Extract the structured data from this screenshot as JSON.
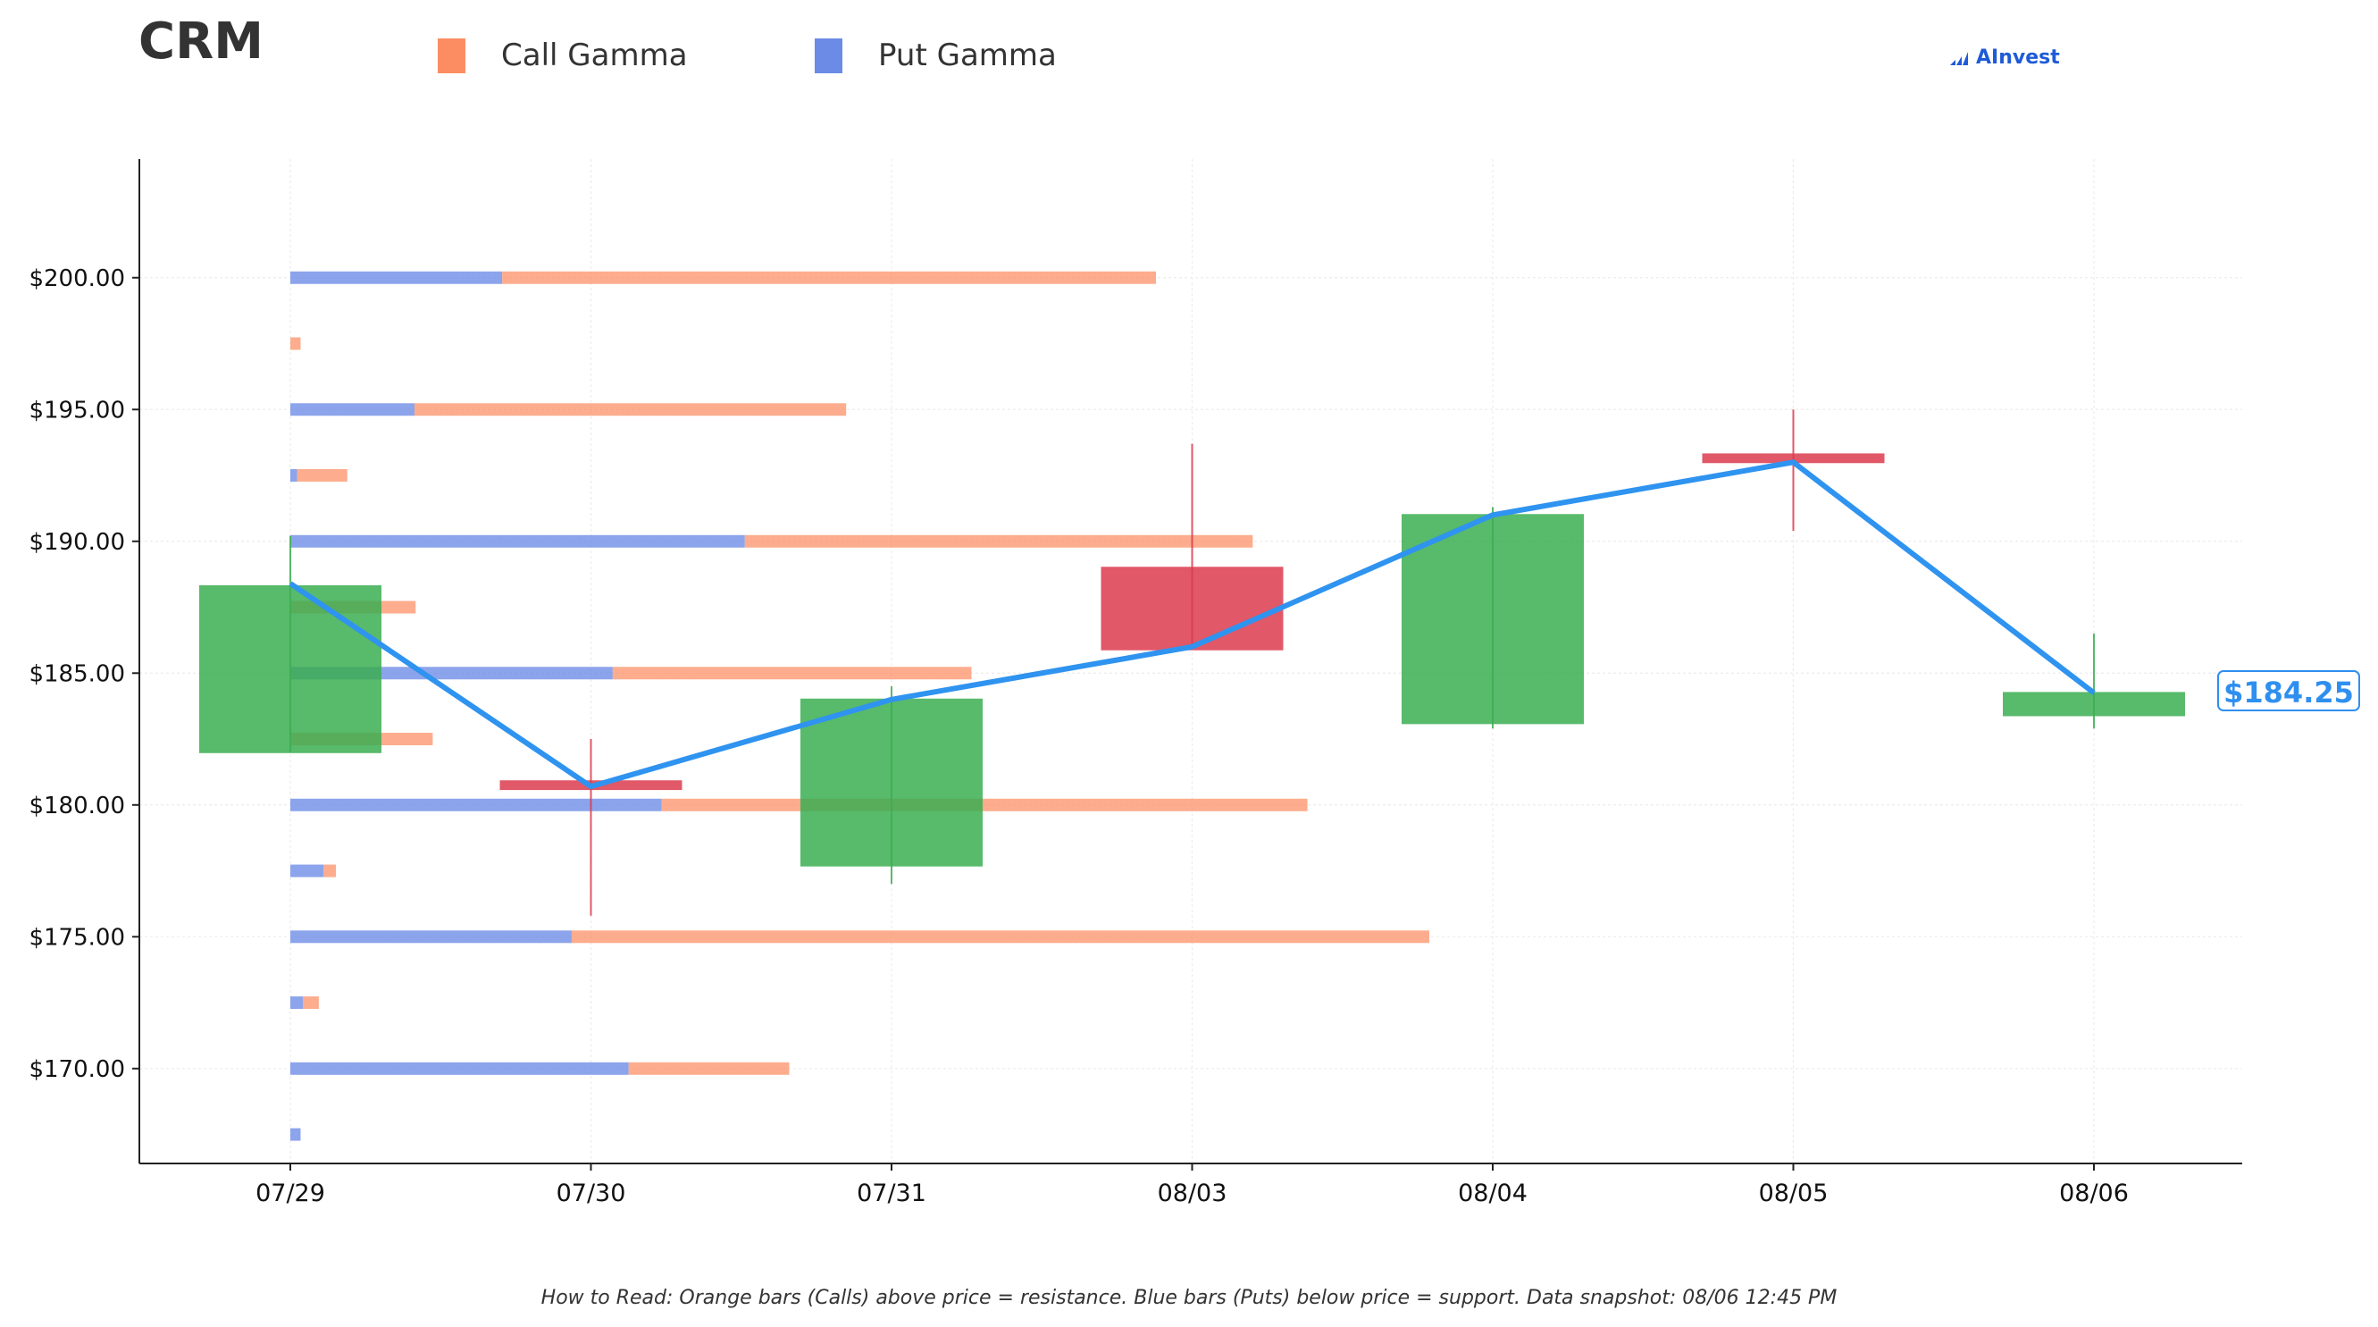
{
  "ticker": "CRM",
  "legend": {
    "call_label": "Call Gamma",
    "put_label": "Put Gamma"
  },
  "brand": "AInvest",
  "last_price_label": "$184.25",
  "footnote": "How to Read: Orange bars (Calls) above price = resistance. Blue bars (Puts) below price = support. Data snapshot: 08/06 12:45 PM",
  "colors": {
    "call": "#fc8d62",
    "put": "#6b8be6",
    "up": "#3cae52",
    "down": "#dc3c4e",
    "price_line": "#2f93f0"
  },
  "chart_data": {
    "type": "candlestick",
    "categories": [
      "07/29",
      "07/30",
      "07/31",
      "08/03",
      "08/04",
      "08/05",
      "08/06"
    ],
    "candles": [
      {
        "date": "07/29",
        "open": 182.0,
        "close": 188.3,
        "high": 190.2,
        "low": 182.0
      },
      {
        "date": "07/30",
        "open": 180.9,
        "close": 180.6,
        "high": 182.5,
        "low": 175.8
      },
      {
        "date": "07/31",
        "open": 177.7,
        "close": 184.0,
        "high": 184.5,
        "low": 177.0
      },
      {
        "date": "08/03",
        "open": 189.0,
        "close": 185.9,
        "high": 193.7,
        "low": 185.9
      },
      {
        "date": "08/04",
        "open": 183.1,
        "close": 191.0,
        "high": 191.3,
        "low": 182.9
      },
      {
        "date": "08/05",
        "open": 193.3,
        "close": 193.0,
        "high": 195.0,
        "low": 190.4
      },
      {
        "date": "08/06",
        "open": 183.4,
        "close": 184.25,
        "high": 186.5,
        "low": 182.9
      }
    ],
    "price_line": [
      {
        "date": "07/29",
        "y": 188.4
      },
      {
        "date": "07/30",
        "y": 180.7
      },
      {
        "date": "07/31",
        "y": 184.0
      },
      {
        "date": "08/03",
        "y": 186.0
      },
      {
        "date": "08/04",
        "y": 191.0
      },
      {
        "date": "08/05",
        "y": 193.0
      },
      {
        "date": "08/06",
        "y": 184.25
      }
    ],
    "gamma_units": "relative to largest total",
    "gamma": [
      {
        "strike": 200.0,
        "put": 0.186,
        "call": 0.574
      },
      {
        "strike": 197.5,
        "put": 0.0,
        "call": 0.009
      },
      {
        "strike": 195.0,
        "put": 0.109,
        "call": 0.379
      },
      {
        "strike": 192.5,
        "put": 0.006,
        "call": 0.044
      },
      {
        "strike": 190.0,
        "put": 0.399,
        "call": 0.446
      },
      {
        "strike": 187.5,
        "put": 0.0,
        "call": 0.11
      },
      {
        "strike": 185.0,
        "put": 0.283,
        "call": 0.315
      },
      {
        "strike": 182.5,
        "put": 0.0,
        "call": 0.125
      },
      {
        "strike": 180.0,
        "put": 0.326,
        "call": 0.567
      },
      {
        "strike": 177.5,
        "put": 0.029,
        "call": 0.011
      },
      {
        "strike": 175.0,
        "put": 0.247,
        "call": 0.753
      },
      {
        "strike": 172.5,
        "put": 0.011,
        "call": 0.014
      },
      {
        "strike": 170.0,
        "put": 0.297,
        "call": 0.141
      },
      {
        "strike": 167.5,
        "put": 0.009,
        "call": 0.0
      }
    ],
    "y_ticks": [
      "$170.00",
      "$175.00",
      "$180.00",
      "$185.00",
      "$190.00",
      "$195.00",
      "$200.00"
    ],
    "y_tick_values": [
      170,
      175,
      180,
      185,
      190,
      195,
      200
    ],
    "ylim": [
      166.4,
      204.5
    ],
    "grid": true
  }
}
